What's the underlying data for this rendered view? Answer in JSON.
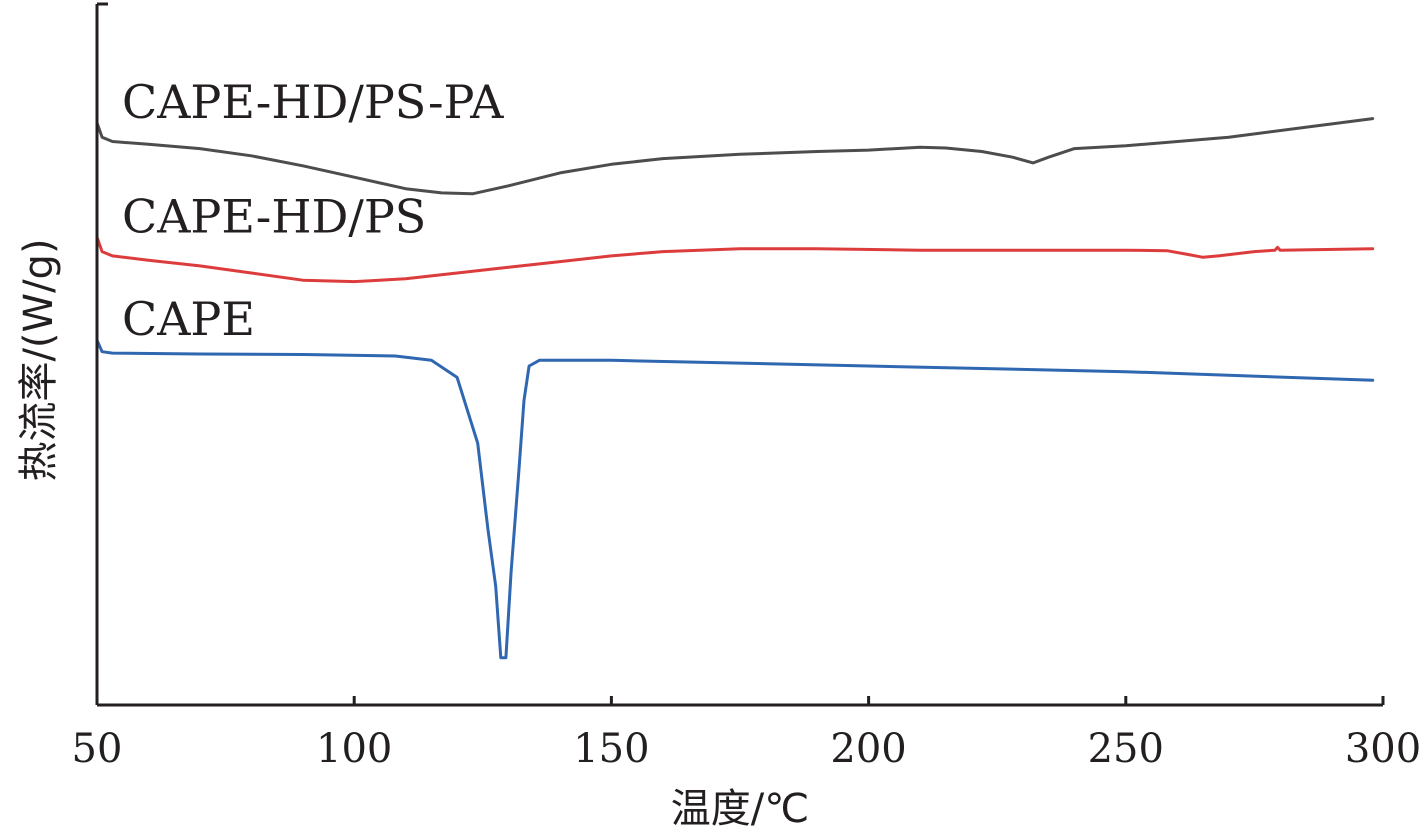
{
  "chart_data": {
    "type": "line",
    "xlabel": "温度/℃",
    "ylabel": "热流率/(W/g)",
    "xlim": [
      50,
      300
    ],
    "x_ticks": [
      "50",
      "100",
      "150",
      "200",
      "250",
      "300"
    ],
    "y_ticks_labeled": false,
    "grid": false,
    "legend": "inline labels above each curve",
    "series": [
      {
        "name": "CAPE-HD/PS-PA",
        "color": "#4d4d4f",
        "points": [
          [
            50,
            0.92
          ],
          [
            51,
            0.87
          ],
          [
            53,
            0.855
          ],
          [
            60,
            0.845
          ],
          [
            70,
            0.83
          ],
          [
            80,
            0.805
          ],
          [
            90,
            0.77
          ],
          [
            100,
            0.73
          ],
          [
            110,
            0.69
          ],
          [
            117,
            0.675
          ],
          [
            123,
            0.672
          ],
          [
            130,
            0.7
          ],
          [
            140,
            0.745
          ],
          [
            150,
            0.775
          ],
          [
            160,
            0.795
          ],
          [
            175,
            0.81
          ],
          [
            190,
            0.82
          ],
          [
            200,
            0.825
          ],
          [
            210,
            0.835
          ],
          [
            215,
            0.832
          ],
          [
            222,
            0.82
          ],
          [
            228,
            0.8
          ],
          [
            232,
            0.78
          ],
          [
            235,
            0.8
          ],
          [
            240,
            0.83
          ],
          [
            250,
            0.84
          ],
          [
            270,
            0.87
          ],
          [
            298,
            0.935
          ]
        ]
      },
      {
        "name": "CAPE-HD/PS",
        "color": "#dd3c3c",
        "points": [
          [
            50,
            0.52
          ],
          [
            51,
            0.47
          ],
          [
            53,
            0.455
          ],
          [
            60,
            0.44
          ],
          [
            70,
            0.42
          ],
          [
            80,
            0.395
          ],
          [
            90,
            0.37
          ],
          [
            100,
            0.365
          ],
          [
            110,
            0.375
          ],
          [
            120,
            0.395
          ],
          [
            130,
            0.415
          ],
          [
            140,
            0.435
          ],
          [
            150,
            0.455
          ],
          [
            160,
            0.47
          ],
          [
            175,
            0.48
          ],
          [
            190,
            0.48
          ],
          [
            210,
            0.475
          ],
          [
            230,
            0.475
          ],
          [
            250,
            0.475
          ],
          [
            258,
            0.473
          ],
          [
            262,
            0.46
          ],
          [
            265,
            0.45
          ],
          [
            268,
            0.455
          ],
          [
            275,
            0.47
          ],
          [
            279,
            0.475
          ],
          [
            279.5,
            0.485
          ],
          [
            280,
            0.475
          ],
          [
            298,
            0.48
          ]
        ]
      },
      {
        "name": "CAPE",
        "color": "#2f67b1",
        "points": [
          [
            50,
            0.16
          ],
          [
            51,
            0.12
          ],
          [
            53,
            0.115
          ],
          [
            70,
            0.112
          ],
          [
            90,
            0.11
          ],
          [
            108,
            0.105
          ],
          [
            115,
            0.09
          ],
          [
            120,
            0.03
          ],
          [
            124,
            -0.2
          ],
          [
            126,
            -0.5
          ],
          [
            127.5,
            -0.7
          ],
          [
            128.5,
            -0.95
          ],
          [
            129.5,
            -0.95
          ],
          [
            130.5,
            -0.65
          ],
          [
            132,
            -0.3
          ],
          [
            133,
            -0.05
          ],
          [
            134,
            0.07
          ],
          [
            136,
            0.09
          ],
          [
            150,
            0.09
          ],
          [
            200,
            0.07
          ],
          [
            250,
            0.05
          ],
          [
            298,
            0.02
          ]
        ]
      }
    ]
  }
}
